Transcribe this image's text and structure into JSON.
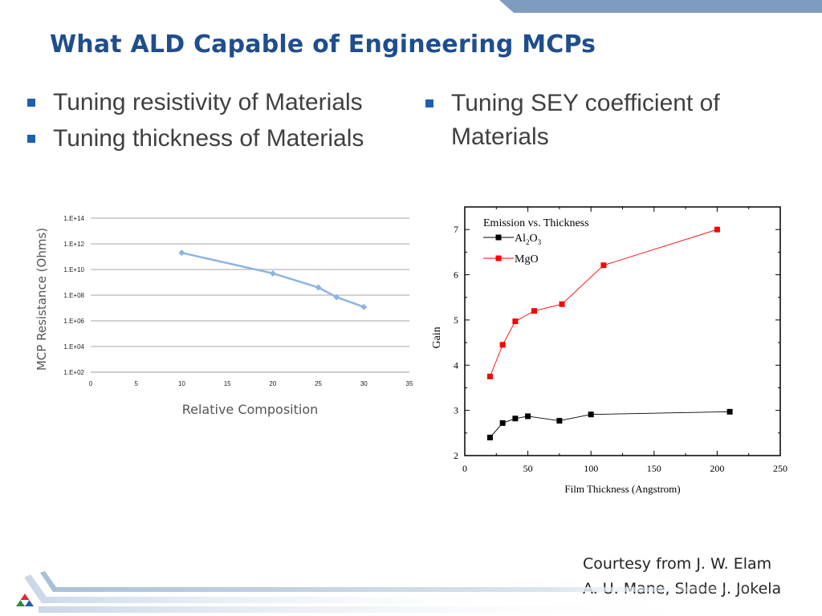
{
  "slide": {
    "title": "What ALD Capable of Engineering MCPs",
    "bullets_left": [
      "Tuning resistivity of Materials",
      "Tuning thickness of Materials"
    ],
    "bullets_right": [
      "Tuning SEY coefficient of Materials"
    ],
    "credit_line1": "Courtesy from J. W. Elam",
    "credit_line2": "A. U. Mane,   Slade J. Jokela",
    "accent_color": "#1f4e8c",
    "bullet_color": "#1f5fae"
  },
  "chart_data": [
    {
      "type": "line",
      "xlabel": "Relative Composition",
      "ylabel": "MCP Resistance (Ohms)",
      "x_ticks": [
        "0",
        "5",
        "10",
        "15",
        "20",
        "25",
        "30",
        "35"
      ],
      "y_ticks": [
        "1.E+02",
        "1.E+04",
        "1.E+06",
        "1.E+08",
        "1.E+10",
        "1.E+12",
        "1.E+14"
      ],
      "xlim": [
        0,
        35
      ],
      "ylim": [
        100,
        100000000000000
      ],
      "log_y": true,
      "grid": "horizontal",
      "series": [
        {
          "color": "#8eb4e3",
          "x": [
            10,
            20,
            25,
            27,
            30
          ],
          "y": [
            200000000000,
            5000000000,
            400000000,
            70000000,
            12000000
          ]
        }
      ]
    },
    {
      "type": "line",
      "title": "Emission vs. Thickness",
      "xlabel": "Film Thickness (Angstrom)",
      "ylabel": "Gain",
      "x_ticks": [
        "0",
        "50",
        "100",
        "150",
        "200",
        "250"
      ],
      "y_ticks": [
        "2",
        "3",
        "4",
        "5",
        "6",
        "7"
      ],
      "xlim": [
        0,
        250
      ],
      "ylim": [
        2,
        7.5
      ],
      "legend": "top-left",
      "series": [
        {
          "name_parts": [
            "Al",
            "2",
            "O",
            "3"
          ],
          "color": "#000000",
          "x": [
            20,
            30,
            40,
            50,
            75,
            100,
            210
          ],
          "y": [
            2.4,
            2.72,
            2.82,
            2.87,
            2.77,
            2.91,
            2.97
          ]
        },
        {
          "name": "MgO",
          "color": "#ff0000",
          "x": [
            20,
            30,
            40,
            55,
            77,
            110,
            200
          ],
          "y": [
            3.75,
            4.45,
            4.97,
            5.2,
            5.35,
            6.21,
            7.0
          ]
        }
      ]
    }
  ]
}
